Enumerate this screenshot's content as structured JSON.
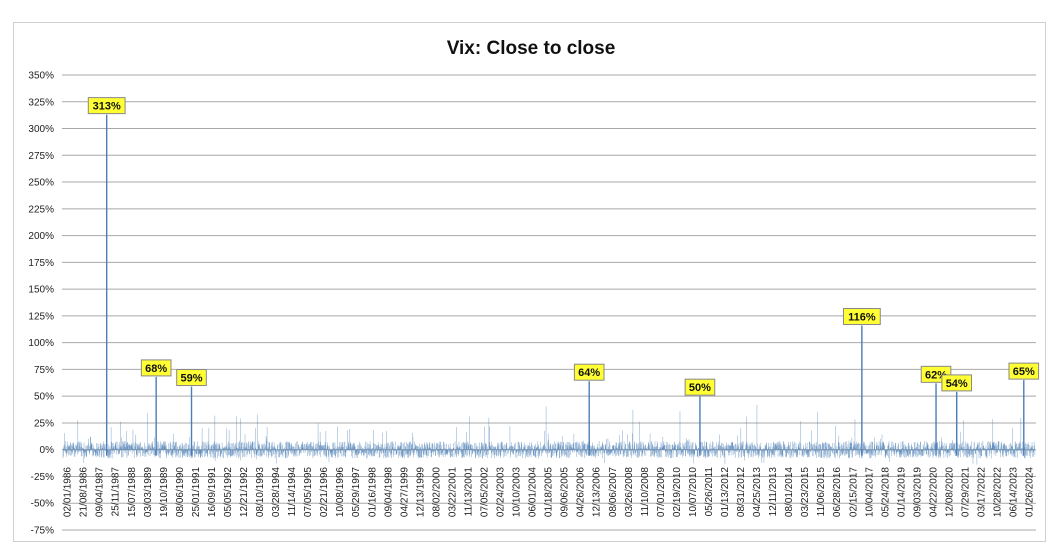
{
  "chart_data": {
    "type": "bar",
    "title": "Vix: Close to close",
    "xlabel": "",
    "ylabel": "",
    "ylim": [
      -75,
      350
    ],
    "y_unit": "%",
    "yticks": [
      350,
      325,
      300,
      275,
      250,
      225,
      200,
      175,
      150,
      125,
      100,
      75,
      50,
      25,
      0,
      -25,
      -50,
      -75
    ],
    "ytick_labels": [
      "350%",
      "325%",
      "300%",
      "275%",
      "250%",
      "225%",
      "200%",
      "175%",
      "150%",
      "125%",
      "100%",
      "75%",
      "50%",
      "25%",
      "0%",
      "-25%",
      "-50%",
      "-75%"
    ],
    "xtick_labels": [
      "02/01/1986",
      "21/08/1986",
      "09/04/1987",
      "25/11/1987",
      "15/07/1988",
      "03/03/1989",
      "19/10/1989",
      "08/06/1990",
      "25/01/1991",
      "16/09/1991",
      "05/05/1992",
      "12/21/1992",
      "08/10/1993",
      "03/28/1994",
      "11/14/1994",
      "07/05/1995",
      "02/21/1996",
      "10/08/1996",
      "05/29/1997",
      "01/16/1998",
      "09/04/1998",
      "04/27/1999",
      "12/13/1999",
      "08/02/2000",
      "03/22/2001",
      "11/13/2001",
      "07/05/2002",
      "02/24/2003",
      "10/10/2003",
      "06/01/2004",
      "01/18/2005",
      "09/06/2005",
      "04/26/2006",
      "12/13/2006",
      "08/06/2007",
      "03/26/2008",
      "11/10/2008",
      "07/01/2009",
      "02/19/2010",
      "10/07/2010",
      "05/26/2011",
      "01/13/2012",
      "08/31/2012",
      "04/25/2013",
      "12/11/2013",
      "08/01/2014",
      "03/23/2015",
      "11/06/2015",
      "06/28/2016",
      "02/15/2017",
      "10/04/2017",
      "05/24/2018",
      "01/14/2019",
      "09/03/2019",
      "04/22/2020",
      "12/08/2020",
      "07/29/2021",
      "03/17/2022",
      "10/28/2022",
      "06/14/2023",
      "01/26/2024"
    ],
    "x_range": [
      "1986-01-02",
      "2025-01-31"
    ],
    "series_color": "#4a7eb5",
    "grid": true,
    "legend": "none",
    "annotations": [
      {
        "label": "313%",
        "date": "1987-10-19",
        "value": 313
      },
      {
        "label": "68%",
        "date": "1989-10-13",
        "value": 68
      },
      {
        "label": "59%",
        "date": "1991-03-15",
        "value": 59
      },
      {
        "label": "64%",
        "date": "2007-02-27",
        "value": 64
      },
      {
        "label": "50%",
        "date": "2011-08-08",
        "value": 50
      },
      {
        "label": "116%",
        "date": "2018-02-05",
        "value": 116
      },
      {
        "label": "62%",
        "date": "2021-01-27",
        "value": 62
      },
      {
        "label": "54%",
        "date": "2021-11-26",
        "value": 54
      },
      {
        "label": "65%",
        "date": "2024-08-05",
        "value": 65
      }
    ],
    "annotation_style": {
      "fill": "#ffff33",
      "stroke": "#888888"
    }
  }
}
